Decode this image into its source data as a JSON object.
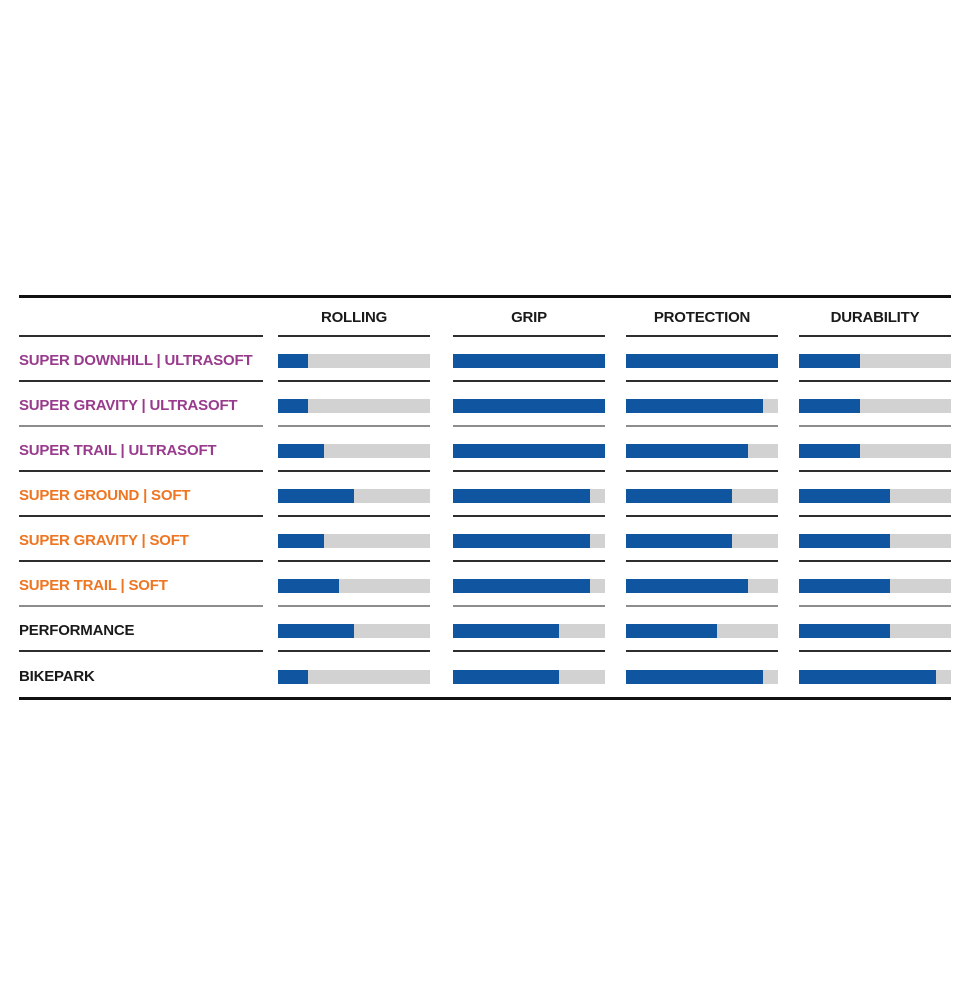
{
  "page": {
    "background": "#ffffff"
  },
  "colors": {
    "bar_fill": "#0f55a0",
    "bar_track": "#d2d2d2",
    "rule_strong": "#111111",
    "rule_light": "#8d8d8d",
    "header_text": "#1a1a1a",
    "ultrasoft_label": "#993b8c",
    "soft_label": "#ee7522",
    "standard_label": "#1a1a1a"
  },
  "chart_data": {
    "type": "bar",
    "orientation": "horizontal",
    "title": "",
    "legend": "none",
    "grid": "off",
    "columns": [
      "ROLLING",
      "GRIP",
      "PROTECTION",
      "DURABILITY"
    ],
    "value_range": [
      0,
      100
    ],
    "rows": [
      {
        "label": "SUPER DOWNHILL | ULTRASOFT",
        "label_color": "#993b8c",
        "values": [
          20,
          100,
          100,
          40
        ]
      },
      {
        "label": "SUPER GRAVITY | ULTRASOFT",
        "label_color": "#993b8c",
        "values": [
          20,
          100,
          90,
          40
        ]
      },
      {
        "label": "SUPER TRAIL | ULTRASOFT",
        "label_color": "#993b8c",
        "values": [
          30,
          100,
          80,
          40
        ]
      },
      {
        "label": "SUPER GROUND | SOFT",
        "label_color": "#ee7522",
        "values": [
          50,
          90,
          70,
          60
        ]
      },
      {
        "label": "SUPER GRAVITY | SOFT",
        "label_color": "#ee7522",
        "values": [
          30,
          90,
          70,
          60
        ]
      },
      {
        "label": "SUPER TRAIL | SOFT",
        "label_color": "#ee7522",
        "values": [
          40,
          90,
          80,
          60
        ]
      },
      {
        "label": "PERFORMANCE",
        "label_color": "#1a1a1a",
        "values": [
          50,
          70,
          60,
          60
        ]
      },
      {
        "label": "BIKEPARK",
        "label_color": "#1a1a1a",
        "values": [
          20,
          70,
          90,
          90
        ]
      }
    ]
  }
}
